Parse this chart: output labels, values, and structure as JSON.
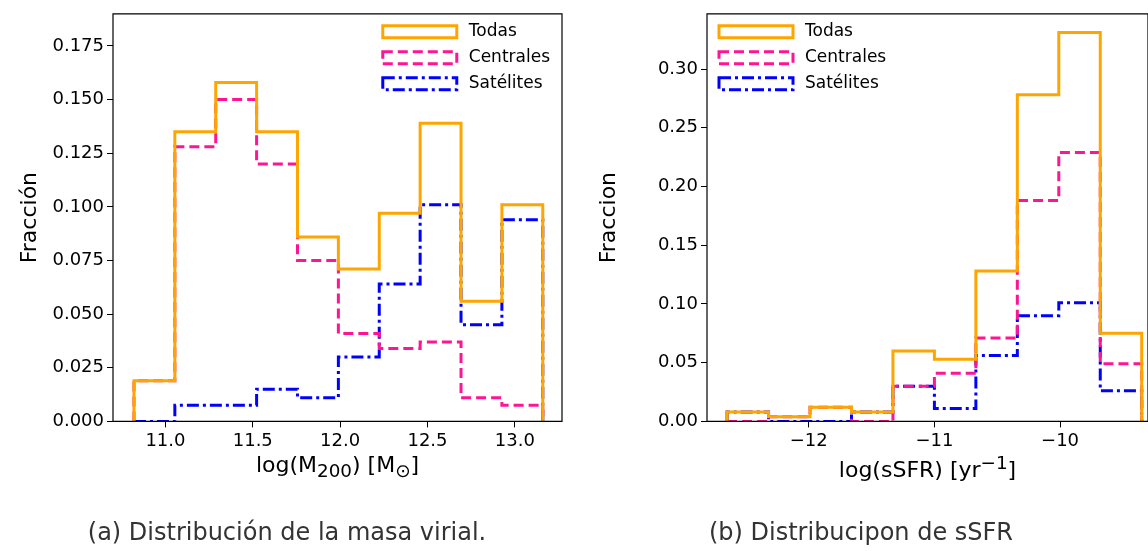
{
  "chart_data": [
    {
      "type": "histogram",
      "xlabel": "log(M$_{200}$) [M$_{⊙}$]",
      "ylabel": "Fracción",
      "annotations": [
        "(a) Distribución de la masa virial."
      ],
      "bins": [
        10.82,
        11.054,
        11.288,
        11.522,
        11.756,
        11.99,
        12.224,
        12.458,
        12.692,
        12.926,
        13.16
      ],
      "series": [
        {
          "name": "Todas",
          "color": "#ffa500",
          "line_style": "solid",
          "values": [
            0.019,
            0.135,
            0.158,
            0.135,
            0.086,
            0.071,
            0.097,
            0.139,
            0.056,
            0.101
          ]
        },
        {
          "name": "Centrales",
          "color": "#ff1493",
          "line_style": "dashed",
          "values": [
            0.019,
            0.128,
            0.15,
            0.12,
            0.075,
            0.041,
            0.034,
            0.037,
            0.011,
            0.0075
          ]
        },
        {
          "name": "Satélites",
          "color": "#0000ff",
          "line_style": "dashdot",
          "values": [
            0,
            0.0075,
            0.0075,
            0.015,
            0.011,
            0.03,
            0.064,
            0.101,
            0.045,
            0.094
          ]
        }
      ],
      "xlim": [
        10.7,
        13.27
      ],
      "ylim": [
        0,
        0.19
      ],
      "xticks": [
        {
          "value": 11,
          "label": "11.0"
        },
        {
          "value": 11.5,
          "label": "11.5"
        },
        {
          "value": 12,
          "label": "12.0"
        },
        {
          "value": 12.5,
          "label": "12.5"
        },
        {
          "value": 13,
          "label": "13.0"
        }
      ],
      "yticks": [
        {
          "value": 0,
          "label": "0.000"
        },
        {
          "value": 0.025,
          "label": "0.025"
        },
        {
          "value": 0.05,
          "label": "0.050"
        },
        {
          "value": 0.075,
          "label": "0.075"
        },
        {
          "value": 0.1,
          "label": "0.100"
        },
        {
          "value": 0.125,
          "label": "0.125"
        },
        {
          "value": 0.15,
          "label": "0.150"
        },
        {
          "value": 0.175,
          "label": "0.175"
        }
      ],
      "legend": "top right"
    },
    {
      "type": "histogram",
      "xlabel": "log(sSFR) [yr$^{−1}$]",
      "ylabel": "Fraccion",
      "annotations": [
        "(b) Distribucipon de sSFR"
      ],
      "bins": [
        -12.65,
        -12.32,
        -11.99,
        -11.66,
        -11.33,
        -11.0,
        -10.67,
        -10.34,
        -10.01,
        -9.68,
        -9.35
      ],
      "series": [
        {
          "name": "Todas",
          "color": "#ffa500",
          "line_style": "solid",
          "values": [
            0.008,
            0.004,
            0.012,
            0.008,
            0.06,
            0.053,
            0.128,
            0.278,
            0.331,
            0.075
          ]
        },
        {
          "name": "Centrales",
          "color": "#ff1493",
          "line_style": "dashed",
          "values": [
            0,
            0.004,
            0.012,
            0,
            0.03,
            0.041,
            0.071,
            0.188,
            0.229,
            0.049
          ]
        },
        {
          "name": "Satélites",
          "color": "#0000ff",
          "line_style": "dashdot",
          "values": [
            0.008,
            0,
            0,
            0.008,
            0.03,
            0.011,
            0.056,
            0.09,
            0.101,
            0.026
          ]
        }
      ],
      "xlim": [
        -12.81,
        -9.3
      ],
      "ylim": [
        0,
        0.347
      ],
      "xticks": [
        {
          "value": -12,
          "label": "−12"
        },
        {
          "value": -11,
          "label": "−11"
        },
        {
          "value": -10,
          "label": "−10"
        }
      ],
      "yticks": [
        {
          "value": 0,
          "label": "0.00"
        },
        {
          "value": 0.05,
          "label": "0.05"
        },
        {
          "value": 0.1,
          "label": "0.10"
        },
        {
          "value": 0.15,
          "label": "0.15"
        },
        {
          "value": 0.2,
          "label": "0.20"
        },
        {
          "value": 0.25,
          "label": "0.25"
        },
        {
          "value": 0.3,
          "label": "0.30"
        }
      ],
      "legend": "top left"
    }
  ]
}
